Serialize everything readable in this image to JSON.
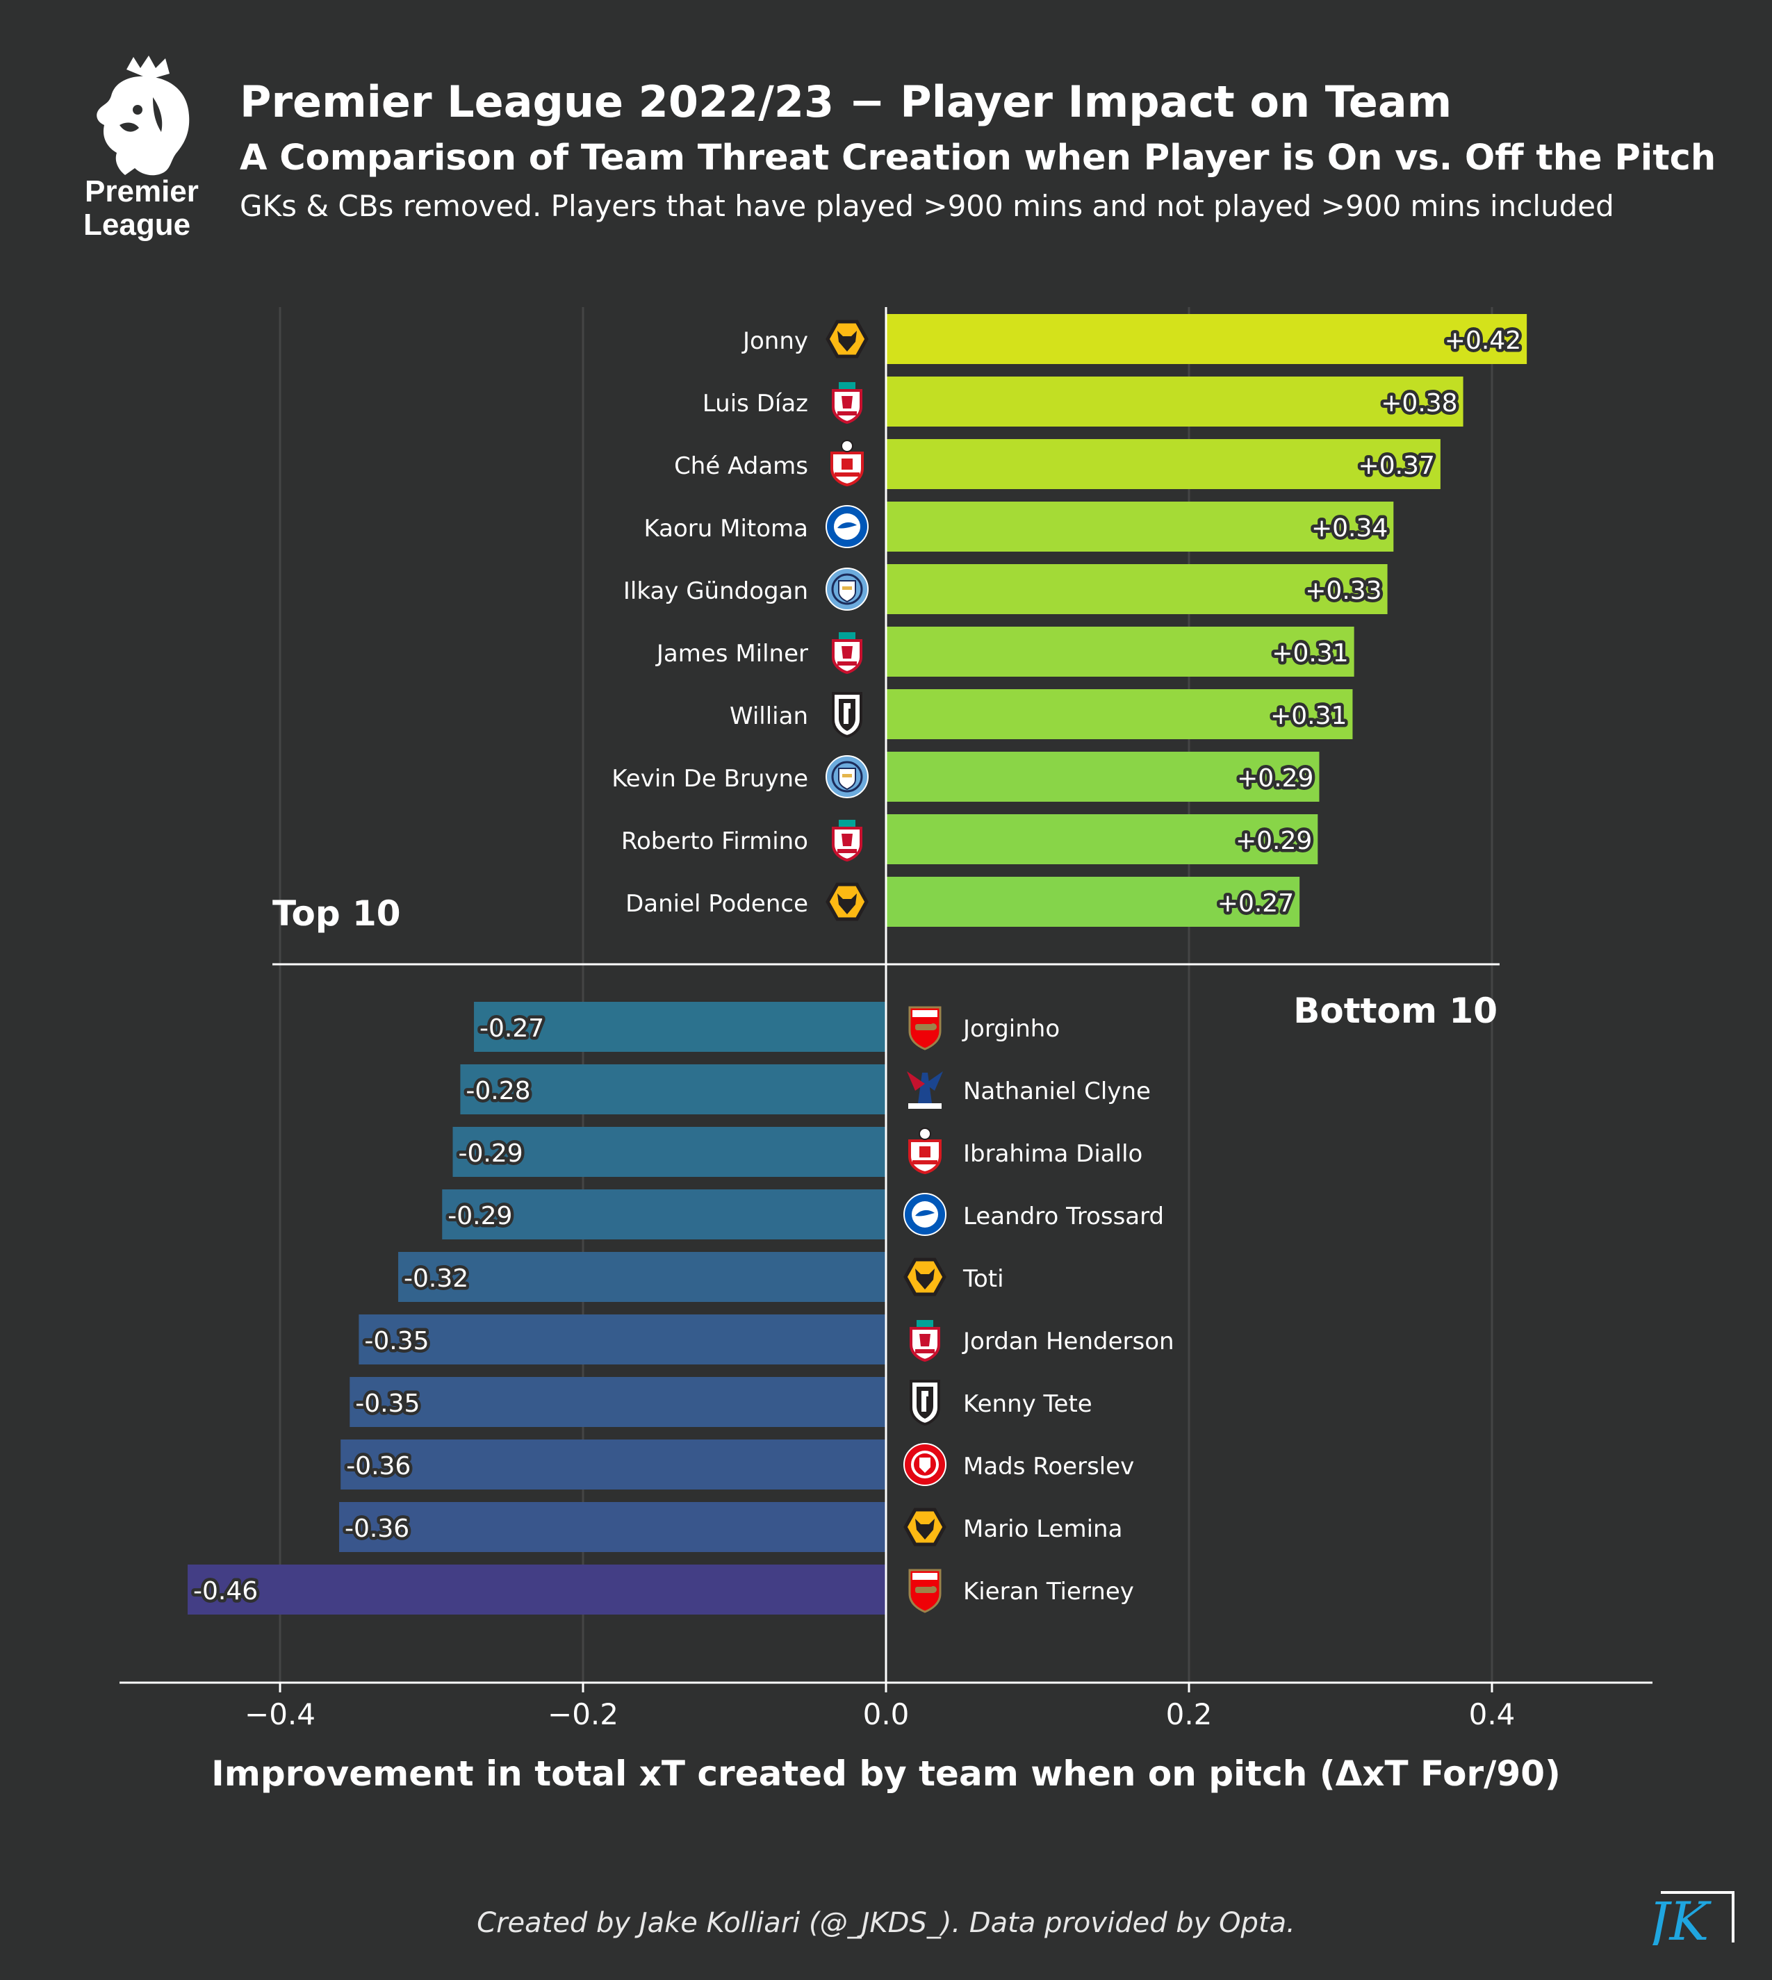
{
  "header": {
    "logo_text_1": "Premier",
    "logo_text_2": "League",
    "title": "Premier League 2022/23 − Player Impact on Team",
    "subtitle": "A Comparison of Team Threat Creation when Player is On vs. Off the Pitch",
    "note": "GKs & CBs removed. Players that have played  >900 mins and not played >900 mins included"
  },
  "footer": {
    "credit": "Created by Jake Kolliari (@_JKDS_). Data provided by Opta.",
    "brand_mark": "JK"
  },
  "chart_data": {
    "type": "bar",
    "orientation": "horizontal",
    "xlabel": "Improvement in total xT created by team when on pitch (ΔxT For/90)",
    "xlim": [
      -0.505,
      0.505
    ],
    "xticks": [
      -0.4,
      -0.2,
      0.0,
      0.2,
      0.4
    ],
    "xtick_labels": [
      "−0.4",
      "−0.2",
      "0.0",
      "0.2",
      "0.4"
    ],
    "grid": true,
    "top_label": "Top 10",
    "bottom_label": "Bottom 10",
    "top10": [
      {
        "player": "Jonny",
        "club": "Wolves",
        "value": 0.423,
        "label": "+0.42",
        "color": "#d4e21b"
      },
      {
        "player": "Luis Díaz",
        "club": "Liverpool",
        "value": 0.381,
        "label": "+0.38",
        "color": "#c2df23"
      },
      {
        "player": "Ché Adams",
        "club": "Southampton",
        "value": 0.366,
        "label": "+0.37",
        "color": "#b8de29"
      },
      {
        "player": "Kaoru Mitoma",
        "club": "Brighton",
        "value": 0.335,
        "label": "+0.34",
        "color": "#a5db36"
      },
      {
        "player": "Ilkay Gündogan",
        "club": "Man City",
        "value": 0.331,
        "label": "+0.33",
        "color": "#a2da37"
      },
      {
        "player": "James Milner",
        "club": "Liverpool",
        "value": 0.309,
        "label": "+0.31",
        "color": "#98d83e"
      },
      {
        "player": "Willian",
        "club": "Fulham",
        "value": 0.308,
        "label": "+0.31",
        "color": "#95d840"
      },
      {
        "player": "Kevin De Bruyne",
        "club": "Man City",
        "value": 0.286,
        "label": "+0.29",
        "color": "#8ad547"
      },
      {
        "player": "Roberto Firmino",
        "club": "Liverpool",
        "value": 0.285,
        "label": "+0.29",
        "color": "#88d548"
      },
      {
        "player": "Daniel Podence",
        "club": "Wolves",
        "value": 0.273,
        "label": "+0.27",
        "color": "#84d44b"
      }
    ],
    "bottom10": [
      {
        "player": "Jorginho",
        "club": "Arsenal",
        "value": -0.272,
        "label": "-0.27",
        "color": "#2c728e"
      },
      {
        "player": "Nathaniel Clyne",
        "club": "Crystal Palace",
        "value": -0.281,
        "label": "-0.28",
        "color": "#2d708e"
      },
      {
        "player": "Ibrahima Diallo",
        "club": "Southampton",
        "value": -0.286,
        "label": "-0.29",
        "color": "#2e6e8e"
      },
      {
        "player": "Leandro Trossard",
        "club": "Brighton",
        "value": -0.293,
        "label": "-0.29",
        "color": "#2f6b8e"
      },
      {
        "player": "Toti",
        "club": "Wolves",
        "value": -0.322,
        "label": "-0.32",
        "color": "#33638d"
      },
      {
        "player": "Jordan Henderson",
        "club": "Liverpool",
        "value": -0.348,
        "label": "-0.35",
        "color": "#365c8d"
      },
      {
        "player": "Kenny Tete",
        "club": "Fulham",
        "value": -0.354,
        "label": "-0.35",
        "color": "#375a8c"
      },
      {
        "player": "Mads Roerslev",
        "club": "Brentford",
        "value": -0.36,
        "label": "-0.36",
        "color": "#38588c"
      },
      {
        "player": "Mario Lemina",
        "club": "Wolves",
        "value": -0.361,
        "label": "-0.36",
        "color": "#39568c"
      },
      {
        "player": "Kieran Tierney",
        "club": "Arsenal",
        "value": -0.461,
        "label": "-0.46",
        "color": "#433e85"
      }
    ]
  },
  "colors": {
    "background": "#2f3030",
    "grid": "#444545",
    "axis": "#ffffff",
    "label_outline": "#2f3030"
  }
}
